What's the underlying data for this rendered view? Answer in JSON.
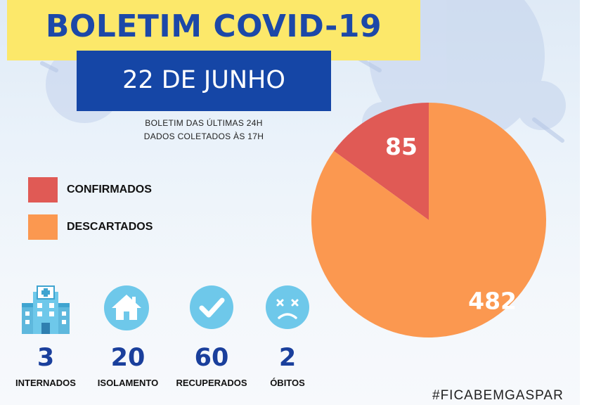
{
  "header": {
    "title": "BOLETIM COVID-19",
    "date": "22 DE JUNHO",
    "subtitle_line1": "BOLETIM DAS ÚLTIMAS 24H",
    "subtitle_line2": "DADOS COLETADOS ÀS  17H"
  },
  "colors": {
    "title_band": "#fce86a",
    "title_text": "#1c48a8",
    "date_box": "#1546a6",
    "confirmados": "#e05a55",
    "descartados": "#fb9850",
    "icon_circle": "#6ec8ea",
    "stat_value": "#1a3f9c"
  },
  "chart_data": {
    "type": "pie",
    "title": "",
    "series": [
      {
        "name": "",
        "values": [
          85,
          482
        ]
      }
    ],
    "categories": [
      "CONFIRMADOS",
      "DESCARTADOS"
    ],
    "colors": [
      "#e05a55",
      "#fb9850"
    ],
    "legend_position": "left",
    "data_labels": [
      "85",
      "482"
    ]
  },
  "stats": [
    {
      "icon": "hospital-icon",
      "value": "3",
      "label": "INTERNADOS"
    },
    {
      "icon": "house-icon",
      "value": "20",
      "label": "ISOLAMENTO"
    },
    {
      "icon": "check-icon",
      "value": "60",
      "label": "RECUPERADOS"
    },
    {
      "icon": "sad-face-icon",
      "value": "2",
      "label": "ÓBITOS"
    }
  ],
  "footer": {
    "hashtag": "#FICABEMGASPAR"
  }
}
